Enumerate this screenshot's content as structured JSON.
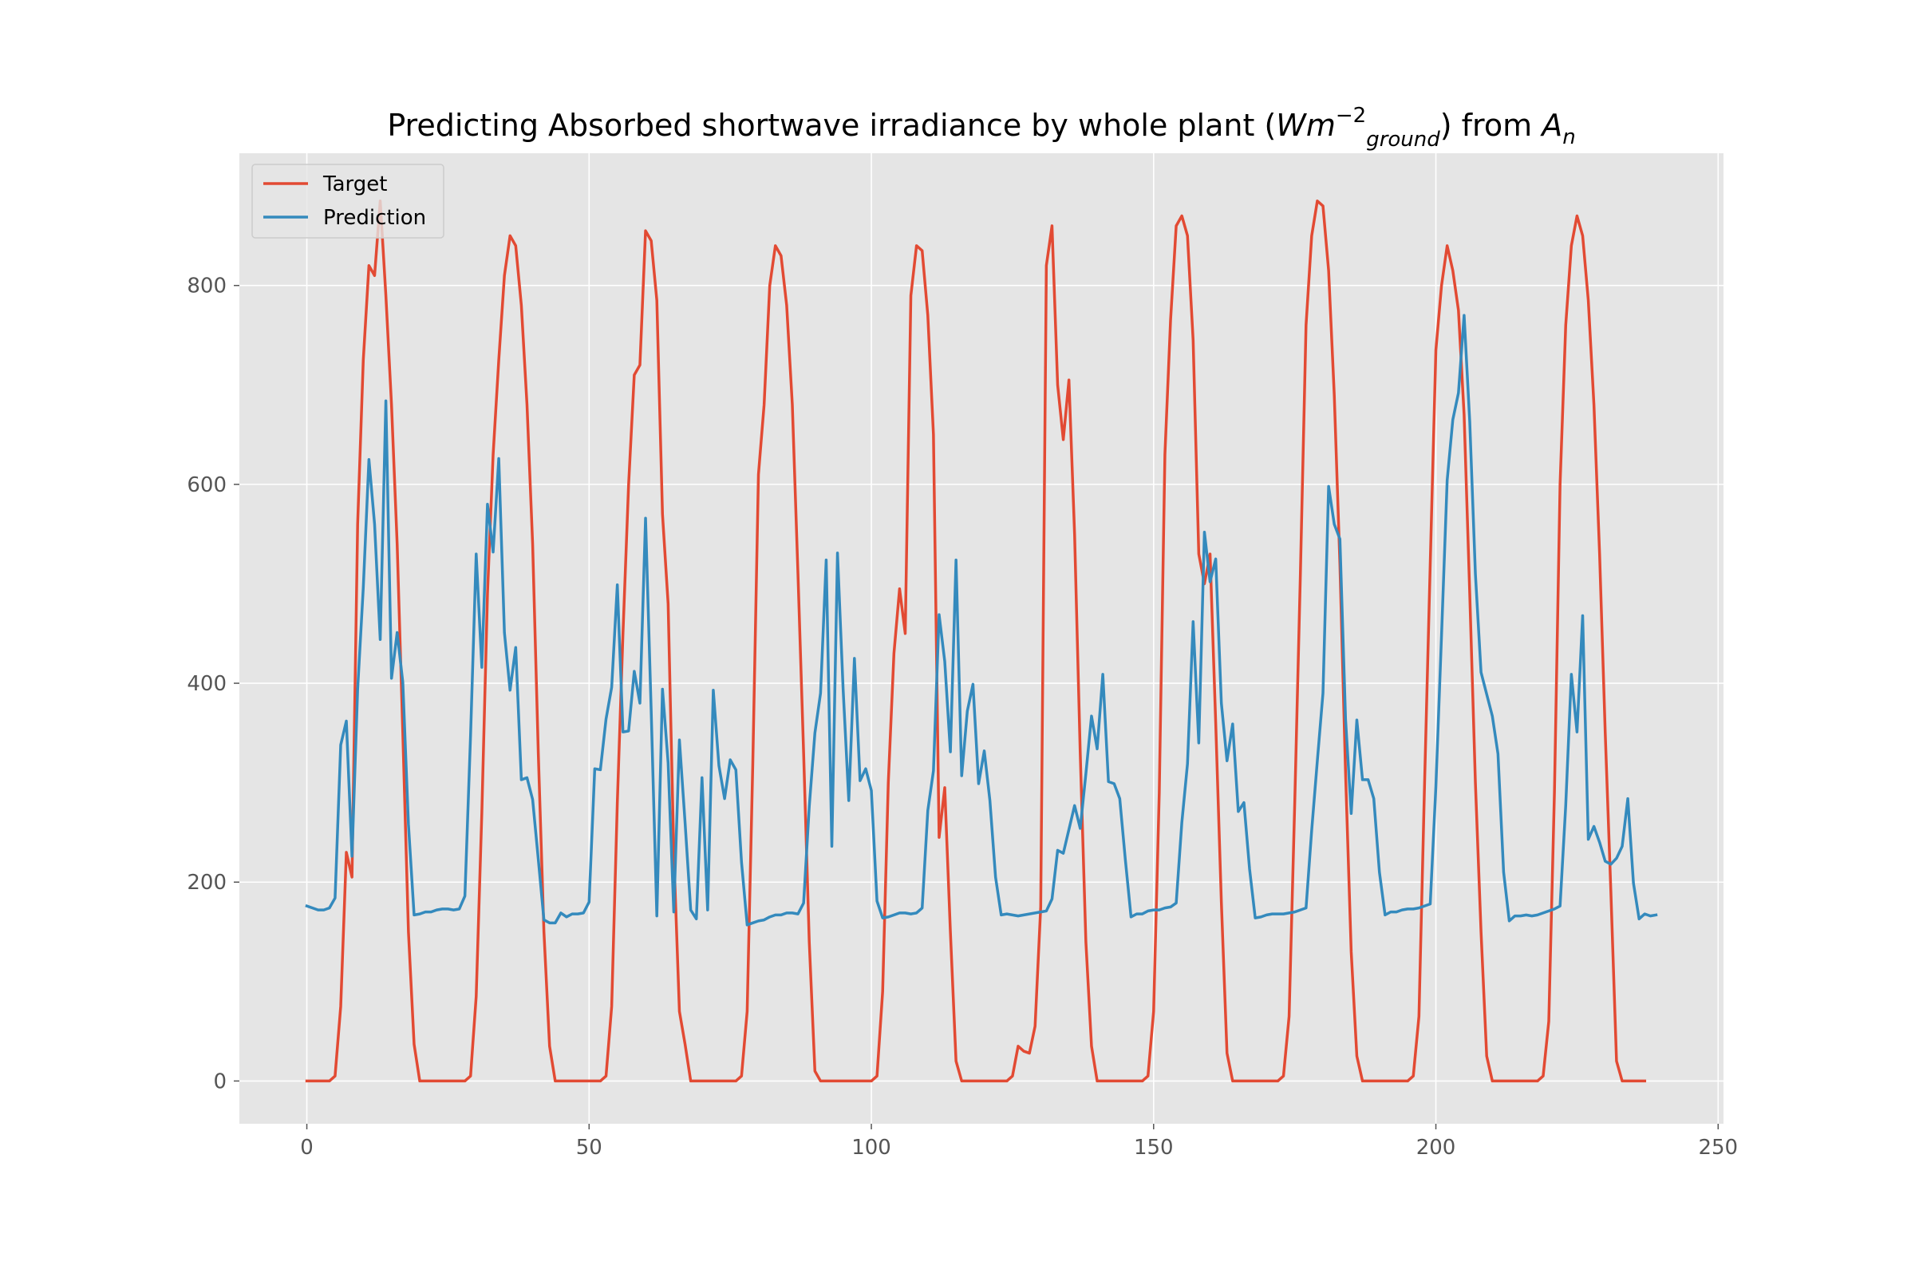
{
  "chart_data": {
    "type": "line",
    "title": "Predicting Absorbed shortwave irradiance by whole plant (Wm_ground^-2) from A_n",
    "title_parts": {
      "prefix": "Predicting Absorbed shortwave irradiance by whole plant (",
      "unit_base": "Wm",
      "unit_sup": "−2",
      "unit_sub": "ground",
      "middle": ") from ",
      "var_base": "A",
      "var_sub": "n"
    },
    "xlabel": "",
    "ylabel": "",
    "xlim": [
      -11.95,
      250.95
    ],
    "ylim": [
      -43,
      933
    ],
    "xticks": [
      0,
      50,
      100,
      150,
      200,
      250
    ],
    "yticks": [
      0,
      200,
      400,
      600,
      800
    ],
    "grid": true,
    "legend_position": "top-left",
    "style": {
      "background": "#e5e5e5",
      "grid_color": "#ffffff",
      "target_color": "#e24a33",
      "prediction_color": "#348abd"
    },
    "series": [
      {
        "name": "Target",
        "color": "#e24a33",
        "values": [
          0,
          0,
          0,
          0,
          0,
          5,
          75,
          230,
          205,
          560,
          725,
          820,
          810,
          885,
          790,
          680,
          540,
          350,
          150,
          37,
          0,
          0,
          0,
          0,
          0,
          0,
          0,
          0,
          0,
          5,
          85,
          270,
          490,
          630,
          725,
          810,
          850,
          840,
          780,
          680,
          540,
          330,
          150,
          35,
          0,
          0,
          0,
          0,
          0,
          0,
          0,
          0,
          0,
          5,
          75,
          280,
          450,
          600,
          710,
          720,
          855,
          845,
          785,
          570,
          480,
          230,
          70,
          37,
          0,
          0,
          0,
          0,
          0,
          0,
          0,
          0,
          0,
          5,
          70,
          320,
          610,
          680,
          800,
          840,
          830,
          780,
          680,
          510,
          330,
          140,
          10,
          0,
          0,
          0,
          0,
          0,
          0,
          0,
          0,
          0,
          0,
          5,
          90,
          300,
          430,
          495,
          450,
          790,
          840,
          835,
          770,
          650,
          245,
          295,
          150,
          20,
          0,
          0,
          0,
          0,
          0,
          0,
          0,
          0,
          0,
          5,
          35,
          30,
          28,
          55,
          175,
          820,
          860,
          700,
          645,
          705,
          550,
          330,
          140,
          35,
          0,
          0,
          0,
          0,
          0,
          0,
          0,
          0,
          0,
          5,
          70,
          290,
          630,
          765,
          860,
          870,
          850,
          745,
          530,
          500,
          530,
          360,
          180,
          28,
          0,
          0,
          0,
          0,
          0,
          0,
          0,
          0,
          0,
          5,
          65,
          280,
          510,
          760,
          850,
          885,
          880,
          815,
          690,
          520,
          310,
          130,
          25,
          0,
          0,
          0,
          0,
          0,
          0,
          0,
          0,
          0,
          5,
          65,
          300,
          520,
          735,
          800,
          840,
          815,
          775,
          670,
          490,
          300,
          150,
          25,
          0,
          0,
          0,
          0,
          0,
          0,
          0,
          0,
          0,
          5,
          60,
          290,
          600,
          760,
          840,
          870,
          850,
          785,
          680,
          530,
          350,
          190,
          20,
          0,
          0,
          0,
          0,
          0
        ]
      },
      {
        "name": "Prediction",
        "color": "#348abd",
        "values": [
          176,
          174,
          172,
          172,
          174,
          184,
          338,
          362,
          226,
          394,
          496,
          625,
          560,
          444,
          684,
          405,
          451,
          401,
          258,
          167,
          168,
          170,
          170,
          172,
          173,
          173,
          172,
          173,
          186,
          347,
          530,
          416,
          580,
          532,
          626,
          451,
          393,
          436,
          303,
          305,
          283,
          223,
          162,
          159,
          159,
          169,
          165,
          168,
          168,
          169,
          180,
          314,
          313,
          364,
          396,
          499,
          351,
          352,
          412,
          380,
          566,
          372,
          166,
          394,
          320,
          170,
          343,
          260,
          172,
          163,
          305,
          172,
          393,
          317,
          284,
          323,
          313,
          220,
          157,
          159,
          161,
          162,
          165,
          167,
          167,
          169,
          169,
          168,
          179,
          276,
          350,
          390,
          524,
          236,
          531,
          394,
          282,
          425,
          302,
          314,
          292,
          181,
          164,
          165,
          167,
          169,
          169,
          168,
          169,
          174,
          272,
          312,
          469,
          422,
          331,
          524,
          307,
          372,
          399,
          299,
          332,
          282,
          205,
          167,
          168,
          167,
          166,
          167,
          168,
          169,
          170,
          171,
          183,
          232,
          229,
          253,
          277,
          254,
          309,
          367,
          334,
          409,
          301,
          299,
          284,
          222,
          165,
          168,
          168,
          171,
          172,
          172,
          174,
          175,
          179,
          260,
          319,
          462,
          340,
          552,
          502,
          525,
          380,
          322,
          359,
          271,
          280,
          213,
          164,
          165,
          167,
          168,
          168,
          168,
          169,
          170,
          172,
          174,
          252,
          322,
          390,
          598,
          560,
          545,
          364,
          269,
          363,
          303,
          303,
          284,
          210,
          167,
          170,
          170,
          172,
          173,
          173,
          174,
          176,
          178,
          296,
          448,
          604,
          665,
          692,
          770,
          663,
          510,
          411,
          389,
          367,
          329,
          210,
          161,
          166,
          166,
          167,
          166,
          167,
          169,
          171,
          173,
          176,
          277,
          409,
          351,
          468,
          243,
          256,
          240,
          221,
          218,
          224,
          236,
          284,
          199,
          163,
          168,
          166,
          167
        ]
      }
    ]
  }
}
